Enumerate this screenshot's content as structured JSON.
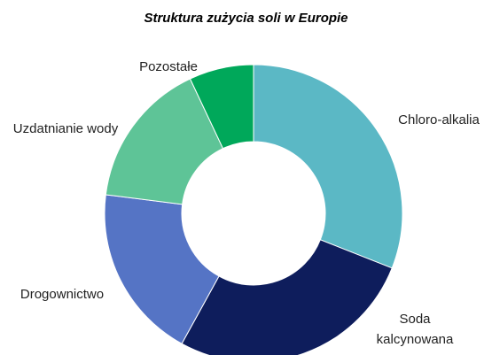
{
  "chart_data": {
    "type": "donut",
    "title": "Struktura zużycia soli w Europie",
    "categories": [
      "Chloro-alkalia",
      "Soda kalcynowana",
      "Drogownictwo",
      "Uzdatnianie wody",
      "Pozostałe"
    ],
    "values": [
      31,
      27,
      19,
      16,
      7
    ],
    "colors": [
      "#5bb8c5",
      "#0e1d5c",
      "#5574c5",
      "#5ec497",
      "#00a85a"
    ]
  }
}
